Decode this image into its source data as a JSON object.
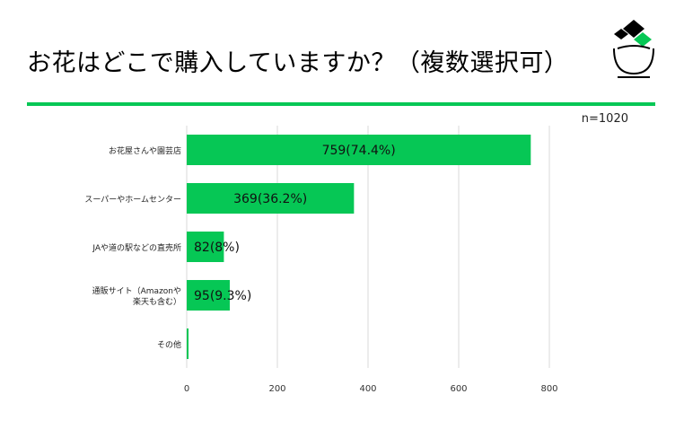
{
  "title": "お花はどこで購入していますか？（複数選択可）",
  "sample_note": "n=1020",
  "colors": {
    "accent": "#06c755",
    "grid": "#d9d9d9",
    "text": "#222222"
  },
  "logo": {
    "name": "flower-pot-logo"
  },
  "chart_data": {
    "type": "bar",
    "orientation": "horizontal",
    "categories": [
      "お花屋さんや園芸店",
      "スーパーやホームセンター",
      "JAや道の駅などの直売所",
      "通販サイト（Amazonや楽天も含む）",
      "その他"
    ],
    "values": [
      759,
      369,
      82,
      95,
      4
    ],
    "data_labels": [
      "759(74.4%)",
      "369(36.2%)",
      "82(8%)",
      "95(9.3%)",
      ""
    ],
    "xlim": [
      0,
      800
    ],
    "x_ticks": [
      0,
      200,
      400,
      600,
      800
    ],
    "grid": true,
    "title": "",
    "xlabel": "",
    "ylabel": ""
  }
}
